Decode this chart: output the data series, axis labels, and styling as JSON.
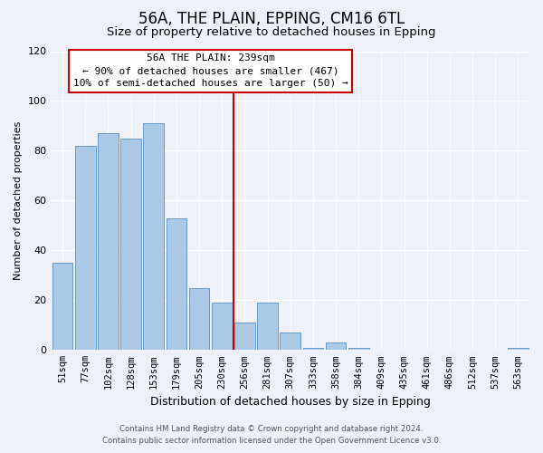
{
  "title": "56A, THE PLAIN, EPPING, CM16 6TL",
  "subtitle": "Size of property relative to detached houses in Epping",
  "xlabel": "Distribution of detached houses by size in Epping",
  "ylabel": "Number of detached properties",
  "bar_labels": [
    "51sqm",
    "77sqm",
    "102sqm",
    "128sqm",
    "153sqm",
    "179sqm",
    "205sqm",
    "230sqm",
    "256sqm",
    "281sqm",
    "307sqm",
    "333sqm",
    "358sqm",
    "384sqm",
    "409sqm",
    "435sqm",
    "461sqm",
    "486sqm",
    "512sqm",
    "537sqm",
    "563sqm"
  ],
  "bar_values": [
    35,
    82,
    87,
    85,
    91,
    53,
    25,
    19,
    11,
    19,
    7,
    1,
    3,
    1,
    0,
    0,
    0,
    0,
    0,
    0,
    1
  ],
  "bar_color": "#adc9e8",
  "bar_edge_color": "#6699cc",
  "annotation_text_line1": "56A THE PLAIN: 239sqm",
  "annotation_text_line2": "← 90% of detached houses are smaller (467)",
  "annotation_text_line3": "10% of semi-detached houses are larger (50) →",
  "annotation_box_color": "#ffffff",
  "annotation_box_edge": "#cc0000",
  "vline_color": "#cc0000",
  "vline_x_index": 7.5,
  "ylim": [
    0,
    120
  ],
  "yticks": [
    0,
    20,
    40,
    60,
    80,
    100,
    120
  ],
  "footnote_line1": "Contains HM Land Registry data © Crown copyright and database right 2024.",
  "footnote_line2": "Contains public sector information licensed under the Open Government Licence v3.0.",
  "background_color": "#eef2f8",
  "plot_bg_color": "#eef2f8",
  "title_fontsize": 12,
  "subtitle_fontsize": 9.5,
  "xlabel_fontsize": 9,
  "ylabel_fontsize": 8,
  "tick_fontsize": 7.5,
  "footnote_fontsize": 6.2
}
